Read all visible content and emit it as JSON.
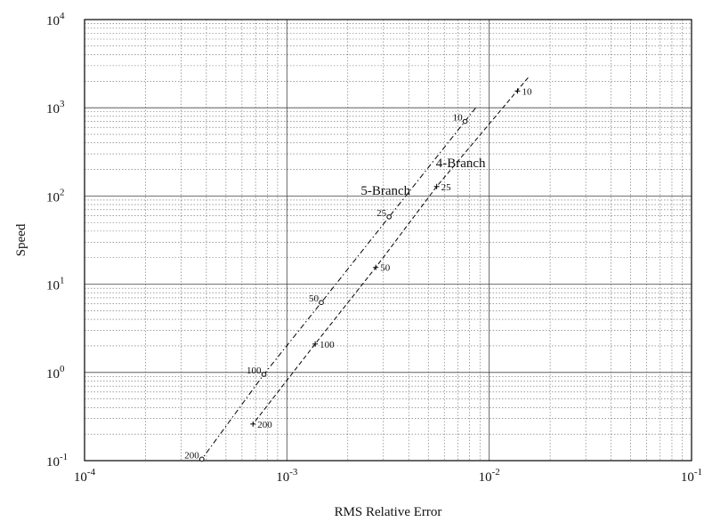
{
  "chart_data": {
    "type": "scatter",
    "title": "",
    "xlabel": "RMS Relative Error",
    "ylabel": "Speed",
    "xscale": "log",
    "yscale": "log",
    "xlim": [
      0.0001,
      0.1
    ],
    "ylim": [
      0.1,
      10000
    ],
    "x_ticks": [
      {
        "base": "10",
        "exp": "-4"
      },
      {
        "base": "10",
        "exp": "-3"
      },
      {
        "base": "10",
        "exp": "-2"
      },
      {
        "base": "10",
        "exp": "-1"
      }
    ],
    "y_ticks": [
      {
        "base": "10",
        "exp": "-1"
      },
      {
        "base": "10",
        "exp": "0"
      },
      {
        "base": "10",
        "exp": "1"
      },
      {
        "base": "10",
        "exp": "2"
      },
      {
        "base": "10",
        "exp": "3"
      },
      {
        "base": "10",
        "exp": "4"
      }
    ],
    "grid": true,
    "series": [
      {
        "name": "5-Branch",
        "marker": "o",
        "line_style": "dash-dot",
        "points": [
          {
            "label": "10",
            "x": 0.0076,
            "y": 700
          },
          {
            "label": "25",
            "x": 0.0032,
            "y": 58
          },
          {
            "label": "50",
            "x": 0.00148,
            "y": 6.2
          },
          {
            "label": "100",
            "x": 0.00077,
            "y": 0.95
          },
          {
            "label": "200",
            "x": 0.00038,
            "y": 0.104
          }
        ]
      },
      {
        "name": "4-Branch",
        "marker": "+",
        "line_style": "dashed",
        "points": [
          {
            "label": "10",
            "x": 0.0138,
            "y": 1550
          },
          {
            "label": "25",
            "x": 0.0055,
            "y": 128
          },
          {
            "label": "50",
            "x": 0.00275,
            "y": 15.5
          },
          {
            "label": "100",
            "x": 0.00138,
            "y": 2.1
          },
          {
            "label": "200",
            "x": 0.00068,
            "y": 0.26
          }
        ]
      }
    ]
  }
}
